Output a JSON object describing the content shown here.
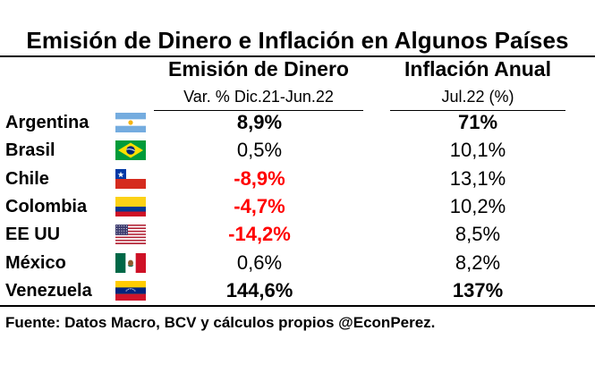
{
  "chart_data": {
    "type": "table",
    "title": "Emisión de Dinero e Inflación en Algunos Países",
    "columns": [
      {
        "header": "Emisión de Dinero",
        "subheader": "Var. % Dic.21-Jun.22"
      },
      {
        "header": "Inflación Anual",
        "subheader": "Jul.22 (%)"
      }
    ],
    "rows": [
      {
        "country": "Argentina",
        "flag": "argentina-flag-icon",
        "money_emission": "8,9%",
        "inflation": "71%",
        "emission_value": 8.9,
        "inflation_value": 71,
        "emission_style": "bold",
        "inflation_style": "bold"
      },
      {
        "country": "Brasil",
        "flag": "brazil-flag-icon",
        "money_emission": "0,5%",
        "inflation": "10,1%",
        "emission_value": 0.5,
        "inflation_value": 10.1,
        "emission_style": "normal",
        "inflation_style": "normal"
      },
      {
        "country": "Chile",
        "flag": "chile-flag-icon",
        "money_emission": "-8,9%",
        "inflation": "13,1%",
        "emission_value": -8.9,
        "inflation_value": 13.1,
        "emission_style": "negative",
        "inflation_style": "normal"
      },
      {
        "country": "Colombia",
        "flag": "colombia-flag-icon",
        "money_emission": "-4,7%",
        "inflation": "10,2%",
        "emission_value": -4.7,
        "inflation_value": 10.2,
        "emission_style": "negative",
        "inflation_style": "normal"
      },
      {
        "country": "EE UU",
        "flag": "usa-flag-icon",
        "money_emission": "-14,2%",
        "inflation": "8,5%",
        "emission_value": -14.2,
        "inflation_value": 8.5,
        "emission_style": "negative",
        "inflation_style": "normal"
      },
      {
        "country": "México",
        "flag": "mexico-flag-icon",
        "money_emission": "0,6%",
        "inflation": "8,2%",
        "emission_value": 0.6,
        "inflation_value": 8.2,
        "emission_style": "normal",
        "inflation_style": "normal"
      },
      {
        "country": "Venezuela",
        "flag": "venezuela-flag-icon",
        "money_emission": "144,6%",
        "inflation": "137%",
        "emission_value": 144.6,
        "inflation_value": 137,
        "emission_style": "bold",
        "inflation_style": "bold"
      }
    ],
    "source": "Fuente: Datos Macro, BCV y cálculos propios @EconPerez."
  },
  "colors": {
    "negative": "#ff0000",
    "text": "#000000"
  }
}
